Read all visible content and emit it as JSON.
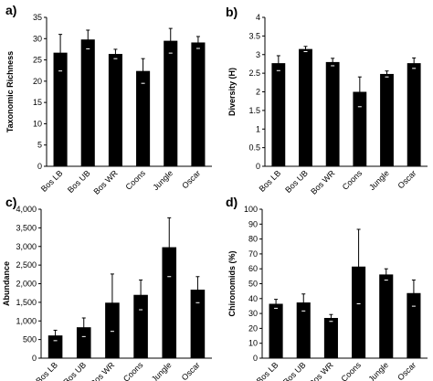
{
  "chart_data": [
    {
      "type": "bar",
      "panel_label": "a)",
      "ylabel": "Taxonomic Richness",
      "xlabel": "",
      "categories": [
        "Bos LB",
        "Bos UB",
        "Bos WR",
        "Coons",
        "Jungle",
        "Oscar"
      ],
      "values": [
        26.7,
        29.8,
        26.4,
        22.4,
        29.5,
        29.1
      ],
      "errors": [
        4.3,
        2.2,
        1.1,
        2.9,
        2.9,
        1.4
      ],
      "ylim": [
        0,
        35
      ],
      "yticks": [
        0,
        5,
        10,
        15,
        20,
        25,
        30,
        35
      ],
      "ytick_labels": [
        "0",
        "5",
        "10",
        "15",
        "20",
        "25",
        "30",
        "35"
      ],
      "color": "#000000",
      "grid": false,
      "legend": false
    },
    {
      "type": "bar",
      "panel_label": "b)",
      "ylabel": "Diversity (H)",
      "xlabel": "",
      "categories": [
        "Bos LB",
        "Bos UB",
        "Bos WR",
        "Coons",
        "Jungle",
        "Oscar"
      ],
      "values": [
        2.77,
        3.15,
        2.8,
        2.0,
        2.48,
        2.77
      ],
      "errors": [
        0.2,
        0.07,
        0.1,
        0.4,
        0.08,
        0.14
      ],
      "ylim": [
        0,
        4
      ],
      "yticks": [
        0,
        0.5,
        1,
        1.5,
        2,
        2.5,
        3,
        3.5,
        4
      ],
      "ytick_labels": [
        "0",
        "0.5",
        "1",
        "1.5",
        "2",
        "2.5",
        "3",
        "3.5",
        "4"
      ],
      "color": "#000000",
      "grid": false,
      "legend": false
    },
    {
      "type": "bar",
      "panel_label": "c)",
      "ylabel": "Abundance",
      "xlabel": "",
      "categories": [
        "Bos LB",
        "Bos UB",
        "Bos WR",
        "Coons",
        "Jungle",
        "Oscar"
      ],
      "values": [
        610,
        830,
        1490,
        1700,
        2980,
        1840
      ],
      "errors": [
        140,
        250,
        770,
        400,
        790,
        350
      ],
      "ylim": [
        0,
        4000
      ],
      "yticks": [
        0,
        500,
        1000,
        1500,
        2000,
        2500,
        3000,
        3500,
        4000
      ],
      "ytick_labels": [
        "0",
        "500",
        "1,000",
        "1,500",
        "2,000",
        "2,500",
        "3,000",
        "3,500",
        "4,000"
      ],
      "color": "#000000",
      "grid": false,
      "legend": false
    },
    {
      "type": "bar",
      "panel_label": "d)",
      "ylabel": "Chironomids (%)",
      "xlabel": "",
      "categories": [
        "Bos LB",
        "Bos UB",
        "Bos WR",
        "Coons",
        "Jungle",
        "Oscar"
      ],
      "values": [
        36.5,
        37.4,
        27.0,
        61.5,
        56.2,
        43.7
      ],
      "errors": [
        3.0,
        5.7,
        2.3,
        25.0,
        3.8,
        8.8
      ],
      "ylim": [
        0,
        100
      ],
      "yticks": [
        0,
        10,
        20,
        30,
        40,
        50,
        60,
        70,
        80,
        90,
        100
      ],
      "ytick_labels": [
        "0",
        "10",
        "20",
        "30",
        "40",
        "50",
        "60",
        "70",
        "80",
        "90",
        "100"
      ],
      "color": "#000000",
      "grid": false,
      "legend": false
    }
  ]
}
